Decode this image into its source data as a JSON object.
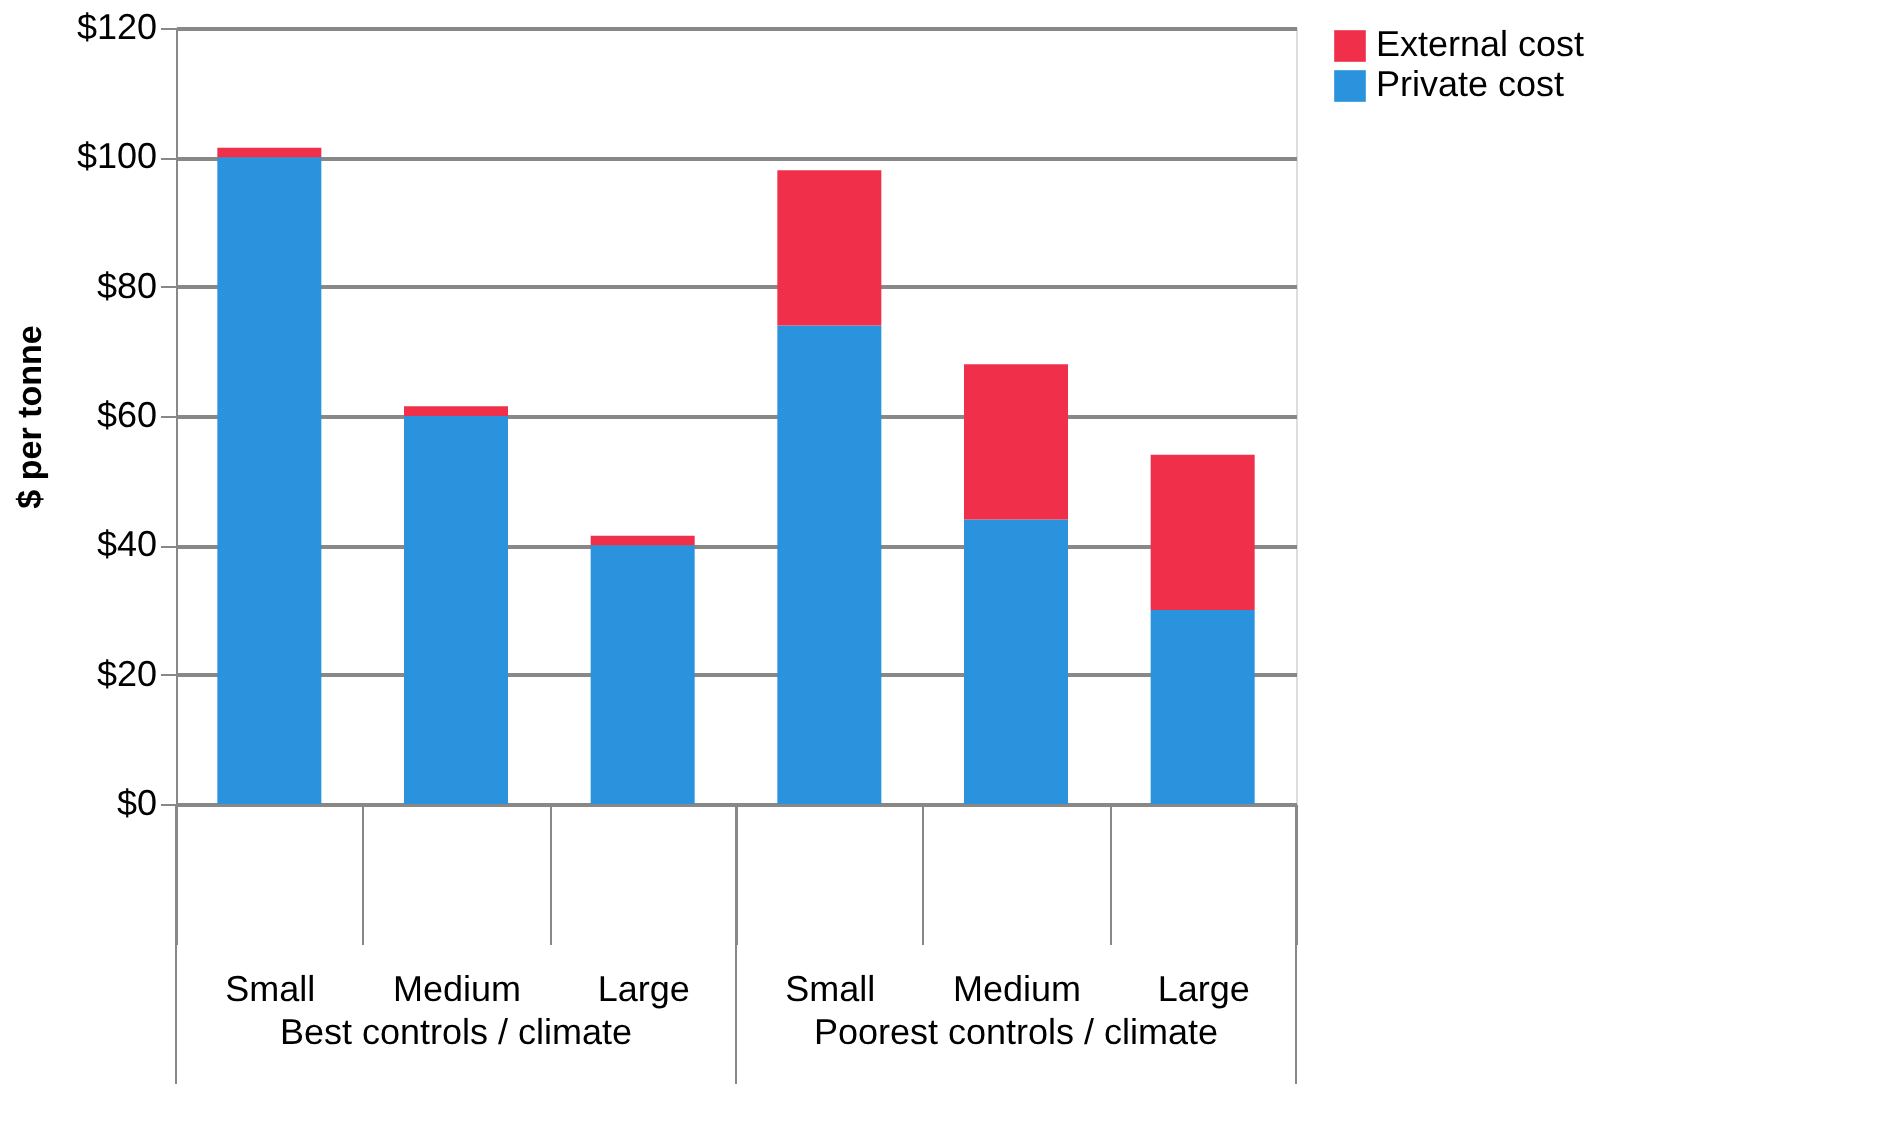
{
  "chart_data": {
    "type": "bar",
    "stacked": true,
    "ylabel": "$ per tonne",
    "categories": [
      "Small",
      "Medium",
      "Large",
      "Small",
      "Medium",
      "Large"
    ],
    "series": [
      {
        "name": "Private cost",
        "color": "#2b93dd",
        "values": [
          100,
          60,
          40,
          74,
          44,
          30
        ]
      },
      {
        "name": "External cost",
        "color": "#f0304a",
        "values": [
          1.5,
          1.5,
          1.5,
          24,
          24,
          24
        ]
      }
    ],
    "ylim": [
      0,
      120
    ],
    "yticks": [
      {
        "value": 0,
        "label": "$0"
      },
      {
        "value": 20,
        "label": "$20"
      },
      {
        "value": 40,
        "label": "$40"
      },
      {
        "value": 60,
        "label": "$60"
      },
      {
        "value": 80,
        "label": "$80"
      },
      {
        "value": 100,
        "label": "$100"
      },
      {
        "value": 120,
        "label": "$120"
      }
    ],
    "grid": "y",
    "legend": "right",
    "annotations": [
      "Best controls / climate",
      "Poorest controls / climate"
    ]
  }
}
